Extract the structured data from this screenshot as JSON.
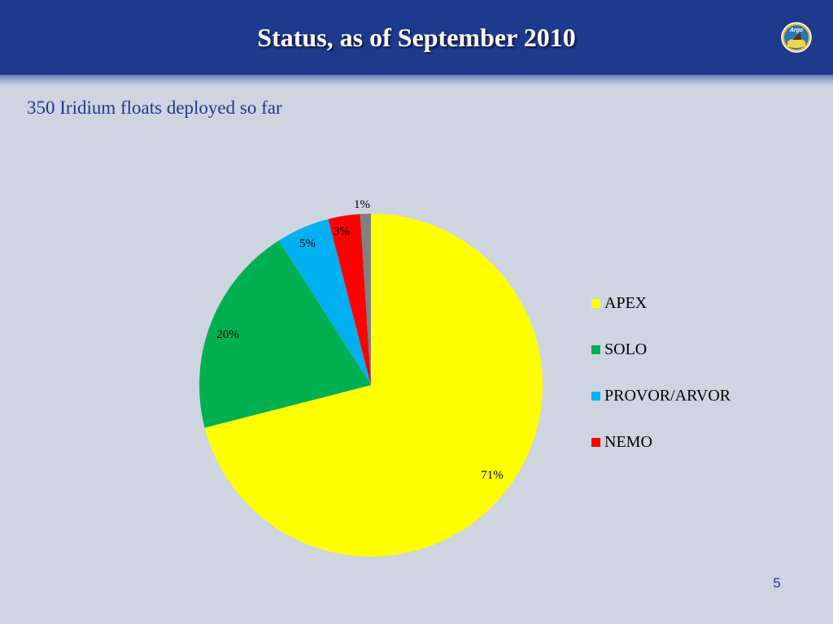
{
  "slide": {
    "title": "Status, as of September 2010",
    "subtitle": "350 Iridium floats deployed so far",
    "page_number": "5",
    "logo_text": "Argo"
  },
  "chart_data": {
    "type": "pie",
    "categories": [
      "APEX",
      "SOLO",
      "PROVOR/ARVOR",
      "NEMO",
      ""
    ],
    "values": [
      71,
      20,
      5,
      3,
      1
    ],
    "data_labels": [
      "71%",
      "20%",
      "5%",
      "3%",
      "1%"
    ],
    "colors": [
      "#ffff00",
      "#00b050",
      "#00b0f0",
      "#ff0000",
      "#808080"
    ],
    "legend": {
      "placement": "right",
      "entries": [
        {
          "label": "APEX",
          "color": "#ffff00"
        },
        {
          "label": "SOLO",
          "color": "#00b050"
        },
        {
          "label": "PROVOR/ARVOR",
          "color": "#00b0f0"
        },
        {
          "label": "NEMO",
          "color": "#ff0000"
        }
      ]
    }
  }
}
